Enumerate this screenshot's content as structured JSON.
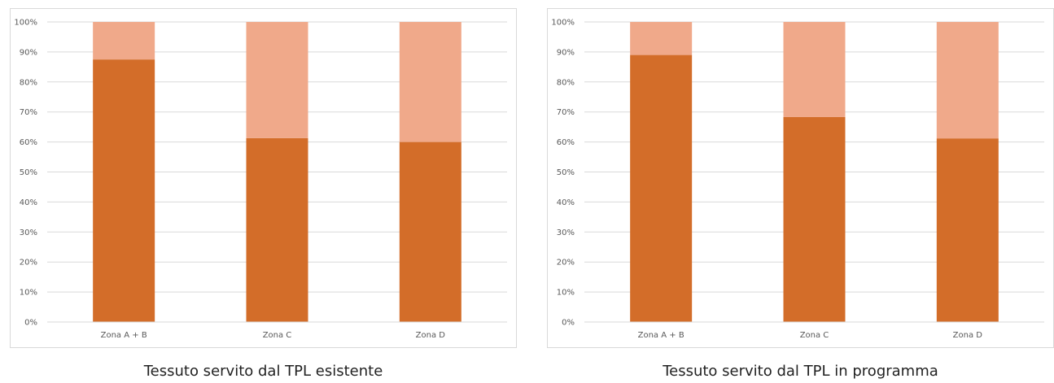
{
  "chart_data": [
    {
      "type": "bar",
      "stacked": true,
      "caption": "Tessuto servito dal TPL esistente",
      "categories": [
        "Zona A + B",
        "Zona C",
        "Zona D"
      ],
      "series": [
        {
          "values": [
            87.5,
            61.3,
            60.0
          ],
          "color": "#d36d29"
        },
        {
          "values": [
            12.5,
            38.7,
            40.0
          ],
          "color": "#f0a98a"
        }
      ],
      "ylim": [
        0,
        100
      ],
      "yticks": [
        "0%",
        "10%",
        "20%",
        "30%",
        "40%",
        "50%",
        "60%",
        "70%",
        "80%",
        "90%",
        "100%"
      ],
      "grid": true
    },
    {
      "type": "bar",
      "stacked": true,
      "caption": "Tessuto servito dal TPL in programma",
      "categories": [
        "Zona A + B",
        "Zona C",
        "Zona D"
      ],
      "series": [
        {
          "values": [
            89.0,
            68.3,
            61.2
          ],
          "color": "#d36d29"
        },
        {
          "values": [
            11.0,
            31.7,
            38.8
          ],
          "color": "#f0a98a"
        }
      ],
      "ylim": [
        0,
        100
      ],
      "yticks": [
        "0%",
        "10%",
        "20%",
        "30%",
        "40%",
        "50%",
        "60%",
        "70%",
        "80%",
        "90%",
        "100%"
      ],
      "grid": true
    }
  ]
}
